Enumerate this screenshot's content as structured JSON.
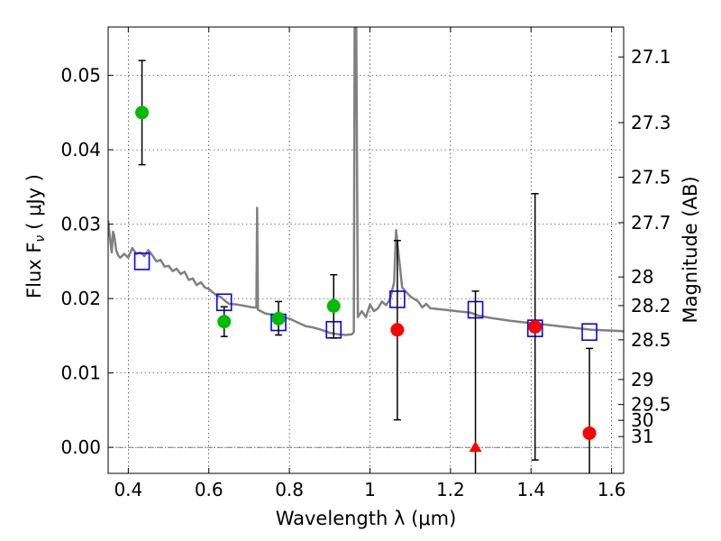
{
  "chart_data": {
    "type": "scatter",
    "xlabel": "Wavelength  λ (μm)",
    "ylabel_left": "Flux  F",
    "ylabel_left_sub": "ν",
    "ylabel_left_unit": "( μJy )",
    "ylabel_right": "Magnitude (AB)",
    "xlim": [
      0.35,
      1.63
    ],
    "ylim": [
      -0.0035,
      0.0565
    ],
    "grid": true,
    "x_ticks": [
      {
        "v": 0.4,
        "label": "0.4"
      },
      {
        "v": 0.6,
        "label": "0.6"
      },
      {
        "v": 0.8,
        "label": "0.8"
      },
      {
        "v": 1.0,
        "label": "1"
      },
      {
        "v": 1.2,
        "label": "1.2"
      },
      {
        "v": 1.4,
        "label": "1.4"
      },
      {
        "v": 1.6,
        "label": "1.6"
      }
    ],
    "y_ticks": [
      {
        "v": 0.0,
        "label": "0.00"
      },
      {
        "v": 0.01,
        "label": "0.01"
      },
      {
        "v": 0.02,
        "label": "0.02"
      },
      {
        "v": 0.03,
        "label": "0.03"
      },
      {
        "v": 0.04,
        "label": "0.04"
      },
      {
        "v": 0.05,
        "label": "0.05"
      }
    ],
    "mag_ticks": [
      {
        "mag": 27.1,
        "label": "27.1"
      },
      {
        "mag": 27.3,
        "label": "27.3"
      },
      {
        "mag": 27.5,
        "label": "27.5"
      },
      {
        "mag": 27.7,
        "label": "27.7"
      },
      {
        "mag": 28,
        "label": "28"
      },
      {
        "mag": 28.2,
        "label": "28.2"
      },
      {
        "mag": 28.5,
        "label": "28.5"
      },
      {
        "mag": 29,
        "label": "29"
      },
      {
        "mag": 29.5,
        "label": "29.5"
      },
      {
        "mag": 30,
        "label": "30"
      },
      {
        "mag": 31,
        "label": "31"
      }
    ],
    "series": [
      {
        "type": "line",
        "color": "#808080",
        "points": [
          [
            0.35,
            0.0305
          ],
          [
            0.353,
            0.029
          ],
          [
            0.356,
            0.0275
          ],
          [
            0.359,
            0.0262
          ],
          [
            0.362,
            0.029
          ],
          [
            0.365,
            0.0285
          ],
          [
            0.37,
            0.0265
          ],
          [
            0.375,
            0.0258
          ],
          [
            0.38,
            0.0255
          ],
          [
            0.39,
            0.026
          ],
          [
            0.4,
            0.0255
          ],
          [
            0.41,
            0.0268
          ],
          [
            0.42,
            0.026
          ],
          [
            0.43,
            0.0262
          ],
          [
            0.44,
            0.0257
          ],
          [
            0.45,
            0.0265
          ],
          [
            0.46,
            0.0258
          ],
          [
            0.47,
            0.025
          ],
          [
            0.48,
            0.0252
          ],
          [
            0.49,
            0.0243
          ],
          [
            0.5,
            0.0244
          ],
          [
            0.51,
            0.0237
          ],
          [
            0.52,
            0.024
          ],
          [
            0.53,
            0.0233
          ],
          [
            0.54,
            0.0236
          ],
          [
            0.55,
            0.0225
          ],
          [
            0.56,
            0.0227
          ],
          [
            0.57,
            0.0218
          ],
          [
            0.58,
            0.0222
          ],
          [
            0.59,
            0.0215
          ],
          [
            0.6,
            0.0213
          ],
          [
            0.61,
            0.0208
          ],
          [
            0.62,
            0.0204
          ],
          [
            0.63,
            0.0202
          ],
          [
            0.64,
            0.0197
          ],
          [
            0.65,
            0.0193
          ],
          [
            0.67,
            0.0192
          ],
          [
            0.69,
            0.019
          ],
          [
            0.71,
            0.0188
          ],
          [
            0.718,
            0.0188
          ],
          [
            0.72,
            0.0322
          ],
          [
            0.722,
            0.0185
          ],
          [
            0.74,
            0.018
          ],
          [
            0.76,
            0.0178
          ],
          [
            0.78,
            0.0176
          ],
          [
            0.8,
            0.0173
          ],
          [
            0.82,
            0.0168
          ],
          [
            0.84,
            0.0163
          ],
          [
            0.86,
            0.0161
          ],
          [
            0.88,
            0.0158
          ],
          [
            0.9,
            0.0154
          ],
          [
            0.92,
            0.0152
          ],
          [
            0.94,
            0.0151
          ],
          [
            0.955,
            0.0152
          ],
          [
            0.96,
            0.0155
          ],
          [
            0.962,
            0.0565
          ],
          [
            0.966,
            0.0565
          ],
          [
            0.97,
            0.0175
          ],
          [
            0.98,
            0.0183
          ],
          [
            0.99,
            0.0175
          ],
          [
            1.0,
            0.0192
          ],
          [
            1.01,
            0.0183
          ],
          [
            1.02,
            0.0187
          ],
          [
            1.03,
            0.0196
          ],
          [
            1.04,
            0.0191
          ],
          [
            1.05,
            0.0199
          ],
          [
            1.06,
            0.0222
          ],
          [
            1.065,
            0.0292
          ],
          [
            1.07,
            0.0265
          ],
          [
            1.08,
            0.0215
          ],
          [
            1.1,
            0.0203
          ],
          [
            1.12,
            0.0196
          ],
          [
            1.13,
            0.0188
          ],
          [
            1.14,
            0.0193
          ],
          [
            1.15,
            0.0187
          ],
          [
            1.2,
            0.0184
          ],
          [
            1.25,
            0.0181
          ],
          [
            1.27,
            0.0177
          ],
          [
            1.3,
            0.0174
          ],
          [
            1.35,
            0.017
          ],
          [
            1.4,
            0.0167
          ],
          [
            1.45,
            0.0164
          ],
          [
            1.5,
            0.0161
          ],
          [
            1.55,
            0.0158
          ],
          [
            1.6,
            0.0157
          ],
          [
            1.63,
            0.0156
          ]
        ]
      },
      {
        "type": "model_squares",
        "color": "#0000ff",
        "points": [
          [
            0.434,
            0.025
          ],
          [
            0.638,
            0.0195
          ],
          [
            0.773,
            0.0168
          ],
          [
            0.91,
            0.0158
          ],
          [
            1.068,
            0.0199
          ],
          [
            1.262,
            0.0185
          ],
          [
            1.41,
            0.016
          ],
          [
            1.545,
            0.0155
          ]
        ]
      },
      {
        "type": "detections",
        "color": "#00bb00",
        "points": [
          {
            "x": 0.434,
            "y": 0.045,
            "lo": 0.038,
            "hi": 0.052
          },
          {
            "x": 0.638,
            "y": 0.0169,
            "lo": 0.0149,
            "hi": 0.0189
          },
          {
            "x": 0.773,
            "y": 0.0173,
            "lo": 0.0151,
            "hi": 0.0196
          },
          {
            "x": 0.91,
            "y": 0.019,
            "lo": 0.0147,
            "hi": 0.0232
          }
        ]
      },
      {
        "type": "nir_detections",
        "color": "#ff0000",
        "points": [
          {
            "x": 1.068,
            "y": 0.0158,
            "lo": 0.0037,
            "hi": 0.0278
          },
          {
            "x": 1.41,
            "y": 0.0162,
            "lo": -0.0017,
            "hi": 0.0341
          },
          {
            "x": 1.545,
            "y": 0.0019,
            "lo": -0.0035,
            "hi": 0.0133
          }
        ]
      },
      {
        "type": "upper_limit",
        "color": "#ff0000",
        "points": [
          {
            "x": 1.262,
            "y": 0.0,
            "lo": -0.0035,
            "hi": 0.021
          }
        ]
      }
    ]
  }
}
